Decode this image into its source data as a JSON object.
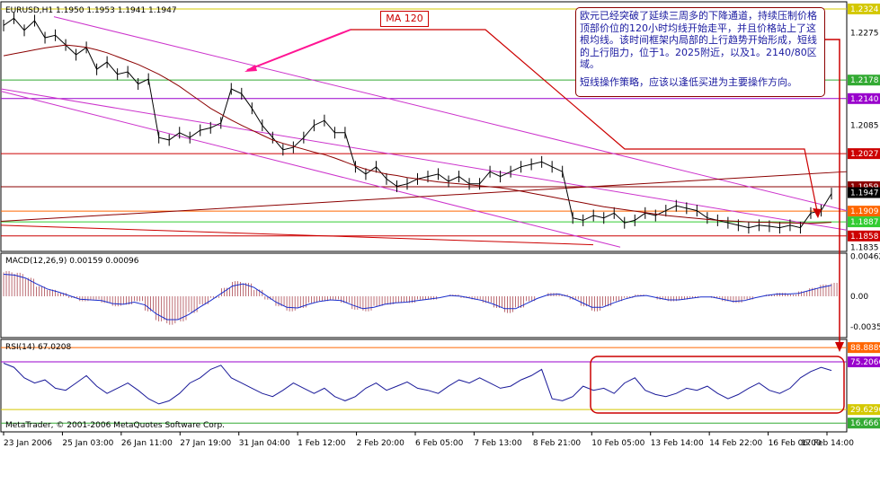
{
  "chart_data": {
    "type": "line",
    "symbol": "EURUSD,H1",
    "ohlc": "1.1950 1.1953 1.1941 1.1947",
    "price_axis_ticks": [
      "1.2324",
      "1.2275",
      "1.2178",
      "1.2140",
      "1.2085",
      "1.2027",
      "1.1959",
      "1.1947",
      "1.1909",
      "1.1887",
      "1.1858",
      "1.1835"
    ],
    "price_ylim": [
      1.183,
      1.2335
    ],
    "horizontal_lines": [
      {
        "price": 1.2324,
        "color": "#d4c800"
      },
      {
        "price": 1.2178,
        "color": "#33aa33"
      },
      {
        "price": 1.214,
        "color": "#9900cc"
      },
      {
        "price": 1.2027,
        "color": "#cc0000"
      },
      {
        "price": 1.1959,
        "color": "#8b0000"
      },
      {
        "price": 1.1909,
        "color": "#ff6600"
      },
      {
        "price": 1.1887,
        "color": "#33cc33"
      },
      {
        "price": 1.1858,
        "color": "#cc0000"
      }
    ],
    "current_price": "1.1947",
    "ma_label": "MA 120",
    "price_series": [
      1.229,
      1.2305,
      1.228,
      1.23,
      1.2265,
      1.227,
      1.225,
      1.223,
      1.2245,
      1.22,
      1.2215,
      1.219,
      1.2195,
      1.217,
      1.218,
      1.206,
      1.2055,
      1.207,
      1.206,
      1.2075,
      1.208,
      1.209,
      1.216,
      1.215,
      1.212,
      1.2085,
      1.206,
      1.2035,
      1.204,
      1.206,
      1.2085,
      1.2095,
      1.207,
      1.207,
      1.2,
      1.1985,
      1.2,
      1.1975,
      1.196,
      1.1965,
      1.1975,
      1.198,
      1.1985,
      1.197,
      1.198,
      1.1965,
      1.1965,
      1.199,
      1.198,
      1.199,
      1.2,
      1.2005,
      1.201,
      1.2,
      1.199,
      1.1895,
      1.189,
      1.19,
      1.1895,
      1.1905,
      1.1885,
      1.189,
      1.1905,
      1.19,
      1.191,
      1.192,
      1.1915,
      1.191,
      1.1895,
      1.189,
      1.1885,
      1.188,
      1.1875,
      1.188,
      1.1878,
      1.1875,
      1.188,
      1.1875,
      1.1905,
      1.191,
      1.1945
    ],
    "ma_series": [
      1.2228,
      1.2232,
      1.2236,
      1.224,
      1.2244,
      1.2247,
      1.225,
      1.2248,
      1.2245,
      1.224,
      1.2234,
      1.2226,
      1.2218,
      1.221,
      1.22,
      1.219,
      1.2178,
      1.2165,
      1.215,
      1.2135,
      1.212,
      1.2108,
      1.2096,
      1.2085,
      1.2075,
      1.2065,
      1.2055,
      1.2048,
      1.2042,
      1.2036,
      1.203,
      1.2025,
      1.2018,
      1.201,
      1.2002,
      1.1995,
      1.199,
      1.1985,
      1.1982,
      1.1978,
      1.1975,
      1.1972,
      1.1969,
      1.1967,
      1.1965,
      1.1963,
      1.1961,
      1.1959,
      1.1957,
      1.1954,
      1.195,
      1.1946,
      1.1942,
      1.1938,
      1.1934,
      1.193,
      1.1926,
      1.1922,
      1.1918,
      1.1915,
      1.1912,
      1.1909,
      1.1906,
      1.1903,
      1.19,
      1.1898,
      1.1896,
      1.1894,
      1.1892,
      1.189,
      1.1889,
      1.1888,
      1.1887,
      1.1886,
      1.1886,
      1.1885,
      1.1885,
      1.1884,
      1.1884,
      1.1885,
      1.1886
    ],
    "macd_label": "MACD(12,26,9) 0.00159 0.00096",
    "macd_ticks": [
      "0.00462",
      "0.00",
      "-0.00358"
    ],
    "macd_ylim": [
      -0.0046,
      0.0048
    ],
    "macd_hist": [
      0.003,
      0.0028,
      0.0022,
      0.0012,
      0.0008,
      0.0004,
      -0.0002,
      -0.0006,
      -0.0004,
      -0.0008,
      -0.0012,
      -0.001,
      -0.0006,
      -0.0018,
      -0.003,
      -0.0034,
      -0.003,
      -0.002,
      -0.001,
      -0.0002,
      0.001,
      0.0018,
      0.0016,
      0.0008,
      -0.0004,
      -0.0012,
      -0.0018,
      -0.0014,
      -0.0008,
      -0.0006,
      -0.0004,
      -0.0008,
      -0.0016,
      -0.0018,
      -0.0012,
      -0.001,
      -0.0008,
      -0.0008,
      -0.0004,
      -0.0004,
      0.0,
      0.0002,
      -0.0002,
      -0.0004,
      -0.0008,
      -0.0014,
      -0.002,
      -0.0014,
      -0.0006,
      0.0,
      0.0004,
      0.0002,
      -0.0004,
      -0.0012,
      -0.0018,
      -0.0012,
      -0.0006,
      -0.0002,
      0.0002,
      0.0,
      -0.0004,
      -0.0006,
      -0.0004,
      -0.0002,
      0.0,
      -0.0002,
      -0.0006,
      -0.0008,
      -0.0004,
      0.0,
      0.0002,
      0.0004,
      0.0002,
      0.0006,
      0.001,
      0.0014,
      0.0016
    ],
    "rsi_label": "RSI(14) 67.0208",
    "rsi_ticks": [
      "88.8889",
      "75.2066",
      "29.6296",
      "16.6667"
    ],
    "rsi_ylim": [
      10,
      95
    ],
    "rsi_levels": [
      {
        "value": 88.8889,
        "color": "#ff6600"
      },
      {
        "value": 75.2066,
        "color": "#9900cc"
      },
      {
        "value": 29.6296,
        "color": "#d4c800"
      },
      {
        "value": 16.6667,
        "color": "#33aa33"
      }
    ],
    "rsi_series": [
      74,
      70,
      60,
      55,
      58,
      50,
      48,
      55,
      62,
      52,
      45,
      50,
      55,
      48,
      40,
      35,
      38,
      45,
      55,
      60,
      68,
      72,
      60,
      55,
      50,
      45,
      42,
      48,
      55,
      50,
      45,
      50,
      42,
      38,
      42,
      50,
      55,
      48,
      52,
      56,
      50,
      48,
      45,
      52,
      58,
      55,
      60,
      55,
      50,
      52,
      58,
      62,
      68,
      40,
      38,
      42,
      52,
      48,
      50,
      45,
      55,
      60,
      48,
      44,
      42,
      45,
      50,
      48,
      52,
      45,
      40,
      44,
      50,
      55,
      48,
      45,
      50,
      60,
      66,
      70,
      67
    ],
    "date_labels": [
      "23 Jan 2006",
      "25 Jan 03:00",
      "26 Jan 11:00",
      "27 Jan 19:00",
      "31 Jan 04:00",
      "1 Feb 12:00",
      "2 Feb 20:00",
      "6 Feb 05:00",
      "7 Feb 13:00",
      "8 Feb 21:00",
      "10 Feb 05:00",
      "13 Feb 14:00",
      "14 Feb 22:00",
      "16 Feb 06:00",
      "17 Feb 14:00"
    ]
  },
  "annotation": {
    "para1": "欧元已经突破了延续三周多的下降通道，持续压制价格顶部价位的120小时均线开始走平，并且价格站上了这根均线。该时间框架内局部的上行趋势开始形成，短线的上行阻力，位于1。2025附近，以及1。2140/80区域。",
    "para2": "短线操作策略，应该以逢低买进为主要操作方向。"
  },
  "footer": "MetaTrader, © 2001-2006 MetaQuotes Software Corp."
}
